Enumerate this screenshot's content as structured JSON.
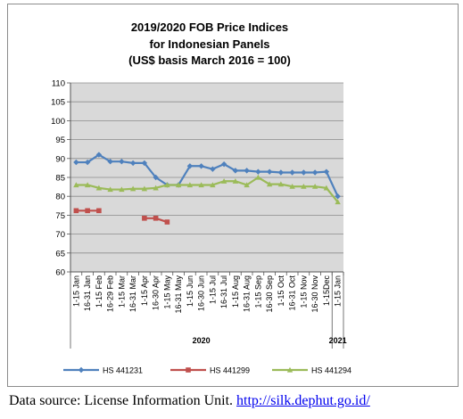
{
  "chart_data": {
    "type": "line",
    "title_lines": [
      "2019/2020 FOB Price Indices",
      "for Indonesian Panels",
      "(US$ basis March 2016 = 100)"
    ],
    "ylim": [
      60,
      110
    ],
    "yticks": [
      60,
      65,
      70,
      75,
      80,
      85,
      90,
      95,
      100,
      105,
      110
    ],
    "grid": true,
    "legend_position": "bottom",
    "categories": [
      "1-15 Jan",
      "16-31 Jan",
      "1-15 Feb",
      "16-29 Feb",
      "1-15 Mar",
      "16-31 Mar",
      "1-15 Apr",
      "16-30 Apr",
      "1-15 May",
      "16-31 May",
      "1-15 Jun",
      "16-30 Jun",
      "1-15 Jul",
      "16-31 Jul",
      "1-15 Aug",
      "16-31 Aug",
      "1-15 Sep",
      "16-30 Sep",
      "1-15 Oct",
      "16-31 Oct",
      "1-15 Nov",
      "16-30 Nov",
      "1-15Dec",
      "1-15 Jan"
    ],
    "year_labels": [
      "2020",
      "2021"
    ],
    "series": [
      {
        "name": "HS 441231",
        "color": "#4f81bd",
        "values": [
          89,
          89,
          91,
          89.2,
          89.2,
          88.8,
          88.8,
          85,
          83,
          83,
          88,
          88,
          87.2,
          88.5,
          86.8,
          86.8,
          86.5,
          86.5,
          86.3,
          86.3,
          86.3,
          86.3,
          86.5,
          80
        ]
      },
      {
        "name": "HS 441299",
        "color": "#c0504d",
        "values": [
          76.2,
          76.2,
          76.2,
          null,
          null,
          null,
          74.2,
          74.2,
          73.2,
          null,
          null,
          null,
          null,
          null,
          null,
          null,
          null,
          null,
          null,
          null,
          null,
          null,
          null,
          null
        ]
      },
      {
        "name": "HS 441294",
        "color": "#9bbb59",
        "values": [
          83,
          83,
          82.2,
          81.8,
          81.8,
          82,
          82,
          82.2,
          83,
          83,
          83,
          83,
          83,
          84,
          84,
          83,
          85,
          83.2,
          83.2,
          82.6,
          82.6,
          82.6,
          82.2,
          78.5
        ]
      }
    ]
  },
  "source": {
    "prefix": "Data source: License Information Unit. ",
    "link": "http://silk.dephut.go.id/"
  }
}
